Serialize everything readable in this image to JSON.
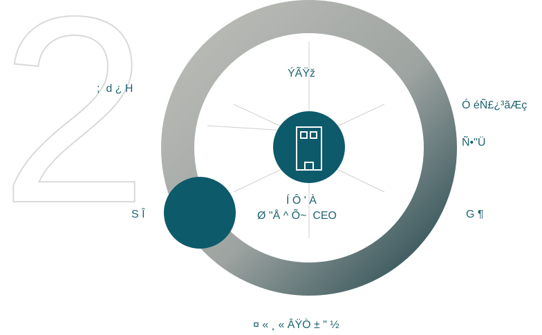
{
  "diagram": {
    "background_numeral": "2",
    "center_icon": "building-icon",
    "center_text_line1": "Í Ô ' À",
    "center_text_line2": "Ø \"Å ^ Õ~  CEO",
    "label_top": "ÝÃŸž",
    "label_top_right_line1": "Ó éÑ£¿³ãÆç",
    "label_top_right_line2": "Ñ•\"Ü",
    "label_upper_left": ";  d ¿ H",
    "label_left": "S Î",
    "label_right": "G ¶",
    "label_bottom": "¤ « ¸ « ÂŸÒ ± \" ½"
  },
  "colors": {
    "accent_teal": "#0d5a6b",
    "ring_light": "#b5b7b2",
    "ring_dark": "#2e4d52",
    "text": "#1f6470",
    "numeral_outline": "#d9d9d9",
    "spoke": "#cfcfcf"
  }
}
